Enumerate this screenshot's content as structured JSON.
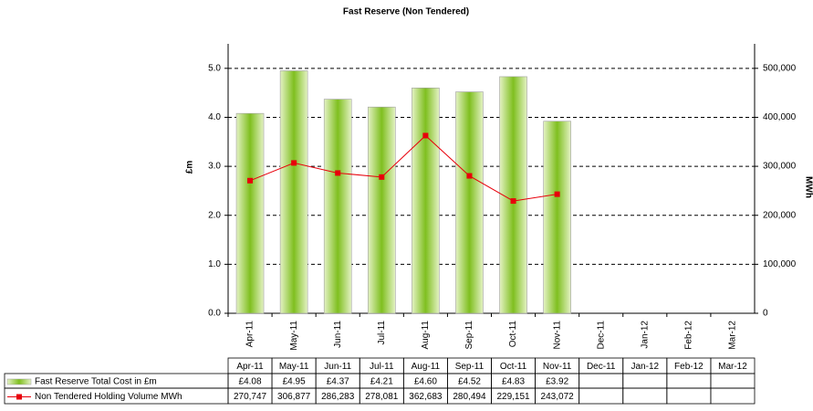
{
  "chart_data": {
    "type": "bar_line",
    "title": "Fast Reserve (Non Tendered)",
    "ylabel": "£m",
    "y2label": "MWh",
    "categories": [
      "Apr-11",
      "May-11",
      "Jun-11",
      "Jul-11",
      "Aug-11",
      "Sep-11",
      "Oct-11",
      "Nov-11",
      "Dec-11",
      "Jan-12",
      "Feb-12",
      "Mar-12"
    ],
    "series": [
      {
        "name": "Fast Reserve Total Cost in £m",
        "type": "bar",
        "color": "#8cc63f",
        "values": [
          4.08,
          4.95,
          4.37,
          4.21,
          4.6,
          4.52,
          4.83,
          3.92,
          null,
          null,
          null,
          null
        ],
        "value_labels": [
          "£4.08",
          "£4.95",
          "£4.37",
          "£4.21",
          "£4.60",
          "£4.52",
          "£4.83",
          "£3.92",
          null,
          null,
          null,
          null
        ]
      },
      {
        "name": "Non Tendered Holding Volume MWh",
        "type": "line",
        "axis": "y2",
        "color": "#e8000b",
        "values": [
          270747,
          306877,
          286283,
          278081,
          362683,
          280494,
          229151,
          243072,
          null,
          null,
          null,
          null
        ],
        "value_labels": [
          "270,747",
          "306,877",
          "286,283",
          "278,081",
          "362,683",
          "280,494",
          "229,151",
          "243,072",
          null,
          null,
          null,
          null
        ]
      }
    ],
    "ylim": [
      0,
      5.5
    ],
    "yticks": [
      {
        "value": 0,
        "label": "0.0"
      },
      {
        "value": 1,
        "label": "1.0"
      },
      {
        "value": 2,
        "label": "2.0"
      },
      {
        "value": 3,
        "label": "3.0"
      },
      {
        "value": 4,
        "label": "4.0"
      },
      {
        "value": 5,
        "label": "5.0"
      }
    ],
    "y2lim": [
      0,
      550000
    ],
    "y2ticks": [
      0,
      {
        "value": 100000,
        "label": "100,000"
      },
      {
        "value": 200000,
        "label": "200,000"
      },
      {
        "value": 300000,
        "label": "300,000"
      },
      {
        "value": 400000,
        "label": "400,000"
      },
      {
        "value": 500000,
        "label": "500,000"
      }
    ],
    "grid": true
  }
}
